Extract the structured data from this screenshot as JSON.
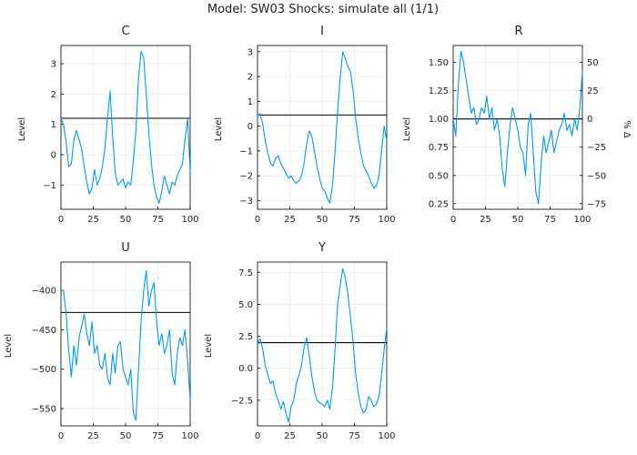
{
  "figure": {
    "suptitle": "Model: SW03        Shocks: simulate all  (1/1)"
  },
  "colors": {
    "series": "#009AFA",
    "steady_state": "#000000",
    "axis": "#000000",
    "grid": "#e6e6e6"
  },
  "chart_data": [
    {
      "type": "line",
      "title": "C",
      "ylabel": "Level",
      "xlim": [
        0,
        100
      ],
      "ylim": [
        -1.8,
        3.6
      ],
      "xticks": [
        0,
        25,
        50,
        75,
        100
      ],
      "yticks": [
        -1,
        0,
        1,
        2,
        3
      ],
      "grid": true,
      "steady_state": 1.2,
      "x": [
        0,
        2,
        4,
        6,
        8,
        10,
        12,
        14,
        16,
        18,
        20,
        22,
        24,
        26,
        28,
        30,
        32,
        34,
        36,
        38,
        40,
        42,
        44,
        46,
        48,
        50,
        52,
        54,
        56,
        58,
        60,
        62,
        64,
        66,
        68,
        70,
        72,
        74,
        76,
        78,
        80,
        82,
        84,
        86,
        88,
        90,
        92,
        94,
        96,
        98,
        100
      ],
      "series": [
        {
          "values": [
            1.2,
            1.0,
            0.4,
            -0.4,
            -0.3,
            0.5,
            0.8,
            0.5,
            0.2,
            -0.4,
            -0.9,
            -1.3,
            -1.1,
            -0.5,
            -1.0,
            -0.8,
            -0.4,
            0.2,
            1.2,
            2.1,
            0.6,
            -0.6,
            -1.0,
            -0.9,
            -0.8,
            -1.1,
            -0.9,
            -1.0,
            -0.2,
            0.8,
            2.5,
            3.4,
            3.2,
            2.0,
            0.7,
            -0.3,
            -1.0,
            -1.4,
            -1.6,
            -1.2,
            -0.7,
            -1.0,
            -1.3,
            -0.9,
            -1.0,
            -0.7,
            -0.5,
            -0.3,
            0.5,
            1.2,
            -0.6
          ]
        }
      ]
    },
    {
      "type": "line",
      "title": "I",
      "ylabel": "Level",
      "xlim": [
        0,
        100
      ],
      "ylim": [
        -3.35,
        3.25
      ],
      "xticks": [
        0,
        25,
        50,
        75,
        100
      ],
      "yticks": [
        -3,
        -2,
        -1,
        0,
        1,
        2,
        3
      ],
      "grid": true,
      "steady_state": 0.45,
      "x": [
        0,
        2,
        4,
        6,
        8,
        10,
        12,
        14,
        16,
        18,
        20,
        22,
        24,
        26,
        28,
        30,
        32,
        34,
        36,
        38,
        40,
        42,
        44,
        46,
        48,
        50,
        52,
        54,
        56,
        58,
        60,
        62,
        64,
        66,
        68,
        70,
        72,
        74,
        76,
        78,
        80,
        82,
        84,
        86,
        88,
        90,
        92,
        94,
        96,
        98,
        100
      ],
      "series": [
        {
          "values": [
            0.4,
            0.5,
            0.1,
            -0.6,
            -1.1,
            -1.5,
            -1.6,
            -1.3,
            -1.2,
            -1.5,
            -1.7,
            -1.9,
            -2.1,
            -2.0,
            -2.2,
            -2.3,
            -2.2,
            -2.0,
            -1.5,
            -0.7,
            -0.2,
            -0.4,
            -1.0,
            -1.6,
            -2.1,
            -2.5,
            -2.6,
            -2.9,
            -3.1,
            -2.4,
            -1.0,
            0.6,
            2.0,
            3.0,
            2.7,
            2.4,
            2.2,
            1.4,
            0.3,
            -0.5,
            -1.1,
            -1.6,
            -1.8,
            -2.0,
            -2.3,
            -2.5,
            -2.4,
            -2.0,
            -1.0,
            0.0,
            -0.6
          ]
        }
      ]
    },
    {
      "type": "line",
      "title": "R",
      "ylabel": "Level",
      "y2label": "% Δ",
      "xlim": [
        0,
        100
      ],
      "ylim": [
        0.2,
        1.65
      ],
      "y2lim": [
        -80,
        65
      ],
      "xticks": [
        0,
        25,
        50,
        75,
        100
      ],
      "yticks": [
        0.25,
        0.5,
        0.75,
        1.0,
        1.25,
        1.5
      ],
      "y2ticks": [
        -75,
        -50,
        -25,
        0,
        25,
        50
      ],
      "y2ticklabels": [
        "−75",
        "−50",
        "−25",
        "0",
        "25",
        "50"
      ],
      "grid": true,
      "steady_state": 1.0,
      "x": [
        0,
        2,
        4,
        6,
        8,
        10,
        12,
        14,
        16,
        18,
        20,
        22,
        24,
        26,
        28,
        30,
        32,
        34,
        36,
        38,
        40,
        42,
        44,
        46,
        48,
        50,
        52,
        54,
        56,
        58,
        60,
        62,
        64,
        66,
        68,
        70,
        72,
        74,
        76,
        78,
        80,
        82,
        84,
        86,
        88,
        90,
        92,
        94,
        96,
        98,
        100
      ],
      "series": [
        {
          "values": [
            1.0,
            0.85,
            1.3,
            1.6,
            1.5,
            1.35,
            1.2,
            1.05,
            1.1,
            0.95,
            1.0,
            1.1,
            1.05,
            1.2,
            1.0,
            1.1,
            0.9,
            1.0,
            0.85,
            0.55,
            0.4,
            0.7,
            0.95,
            1.1,
            1.0,
            0.9,
            0.75,
            0.7,
            0.5,
            0.95,
            1.05,
            0.7,
            0.35,
            0.25,
            0.6,
            0.85,
            0.7,
            0.8,
            0.9,
            0.7,
            0.8,
            0.9,
            0.95,
            1.05,
            0.9,
            0.95,
            0.85,
            1.0,
            0.9,
            1.1,
            1.42
          ]
        }
      ]
    },
    {
      "type": "line",
      "title": "U",
      "ylabel": "Level",
      "xlim": [
        0,
        100
      ],
      "ylim": [
        -572,
        -364
      ],
      "xticks": [
        0,
        25,
        50,
        75,
        100
      ],
      "yticks": [
        -550,
        -500,
        -450,
        -400
      ],
      "ytick_labels": [
        "−550",
        "−500",
        "−450",
        "−400"
      ],
      "grid": true,
      "steady_state": -428,
      "x": [
        0,
        2,
        4,
        6,
        8,
        10,
        12,
        14,
        16,
        18,
        20,
        22,
        24,
        26,
        28,
        30,
        32,
        34,
        36,
        38,
        40,
        42,
        44,
        46,
        48,
        50,
        52,
        54,
        56,
        58,
        60,
        62,
        64,
        66,
        68,
        70,
        72,
        74,
        76,
        78,
        80,
        82,
        84,
        86,
        88,
        90,
        92,
        94,
        96,
        98,
        100
      ],
      "series": [
        {
          "values": [
            -400,
            -400,
            -430,
            -475,
            -510,
            -470,
            -495,
            -460,
            -445,
            -430,
            -455,
            -470,
            -440,
            -480,
            -470,
            -495,
            -500,
            -480,
            -510,
            -520,
            -480,
            -505,
            -470,
            -465,
            -500,
            -510,
            -520,
            -500,
            -555,
            -565,
            -500,
            -440,
            -400,
            -375,
            -420,
            -400,
            -390,
            -440,
            -470,
            -455,
            -480,
            -470,
            -450,
            -505,
            -520,
            -480,
            -460,
            -470,
            -450,
            -490,
            -540
          ]
        }
      ]
    },
    {
      "type": "line",
      "title": "Y",
      "ylabel": "Level",
      "xlim": [
        0,
        100
      ],
      "ylim": [
        -4.5,
        8.3
      ],
      "xticks": [
        0,
        25,
        50,
        75,
        100
      ],
      "yticks": [
        -2.5,
        0.0,
        2.5,
        5.0,
        7.5
      ],
      "ytick_labels": [
        "−2.5",
        "0.0",
        "2.5",
        "5.0",
        "7.5"
      ],
      "grid": true,
      "steady_state": 2.0,
      "x": [
        0,
        2,
        4,
        6,
        8,
        10,
        12,
        14,
        16,
        18,
        20,
        22,
        24,
        26,
        28,
        30,
        32,
        34,
        36,
        38,
        40,
        42,
        44,
        46,
        48,
        50,
        52,
        54,
        56,
        58,
        60,
        62,
        64,
        66,
        68,
        70,
        72,
        74,
        76,
        78,
        80,
        82,
        84,
        86,
        88,
        90,
        92,
        94,
        96,
        98,
        100
      ],
      "series": [
        {
          "values": [
            2.0,
            2.3,
            1.5,
            0.2,
            -0.5,
            -1.2,
            -1.0,
            -2.0,
            -2.5,
            -3.2,
            -2.6,
            -3.5,
            -4.2,
            -3.0,
            -2.5,
            -1.2,
            -0.6,
            0.2,
            1.6,
            2.4,
            1.0,
            -0.6,
            -1.8,
            -2.5,
            -2.7,
            -2.8,
            -3.0,
            -2.5,
            -3.2,
            -1.5,
            1.5,
            5.0,
            6.5,
            7.8,
            7.0,
            5.8,
            4.0,
            2.0,
            -0.5,
            -2.0,
            -3.0,
            -3.5,
            -3.2,
            -2.2,
            -2.5,
            -3.0,
            -2.8,
            -2.2,
            -0.5,
            1.5,
            3.2
          ]
        }
      ]
    }
  ]
}
